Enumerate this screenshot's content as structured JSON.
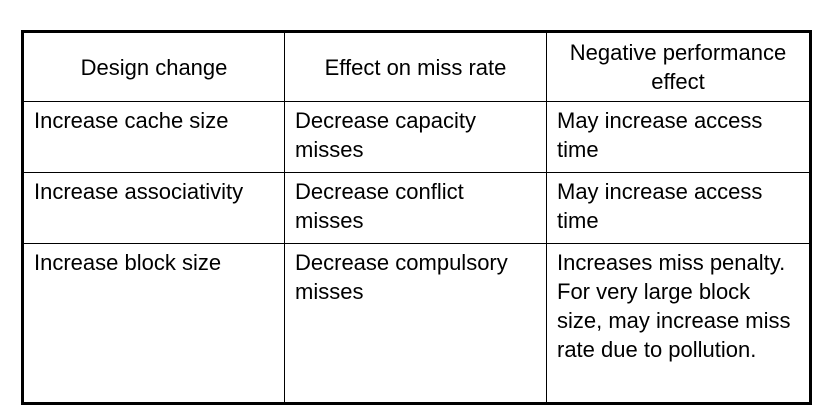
{
  "table": {
    "headers": [
      "Design change",
      "Effect on miss rate",
      "Negative performance effect"
    ],
    "rows": [
      [
        "Increase cache size",
        "Decrease capacity misses",
        "May increase access time"
      ],
      [
        "Increase associativity",
        "Decrease conflict misses",
        "May increase access time"
      ],
      [
        "Increase block size",
        "Decrease compulsory misses",
        "Increases miss penalty. For very large block size, may increase miss rate due to pollution."
      ]
    ]
  }
}
